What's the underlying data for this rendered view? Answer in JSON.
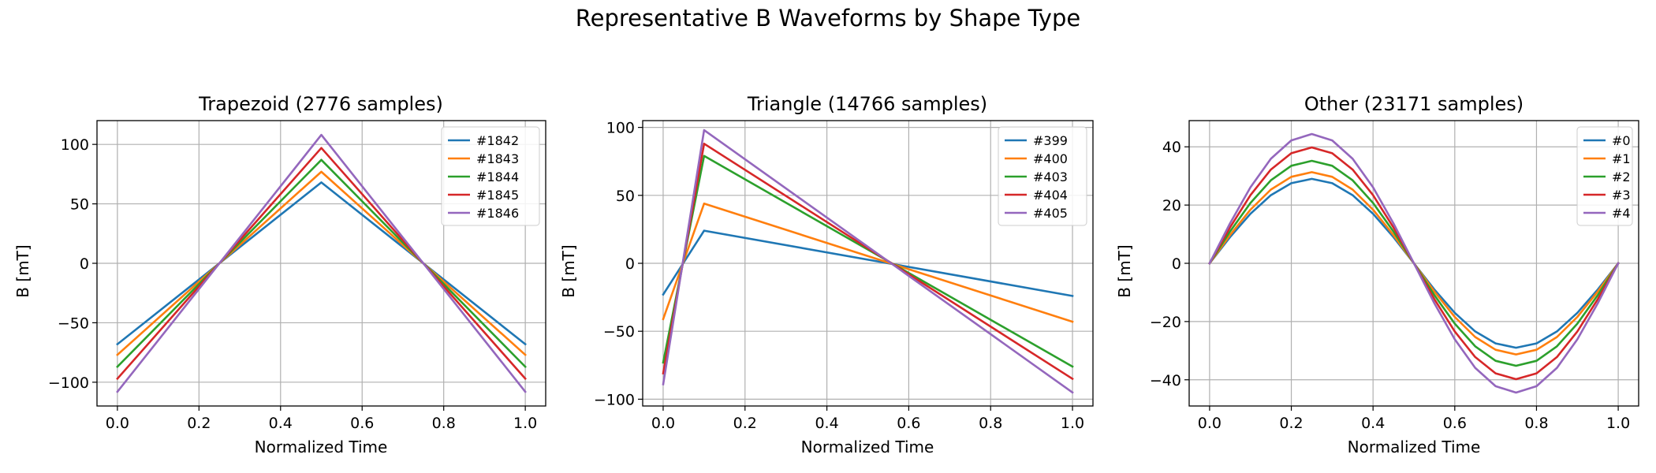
{
  "figure": {
    "suptitle": "Representative B Waveforms by Shape Type"
  },
  "chart_data": [
    {
      "type": "line",
      "title": "Trapezoid (2776 samples)",
      "xlabel": "Normalized Time",
      "ylabel": "B [mT]",
      "xlim": [
        -0.05,
        1.05
      ],
      "ylim": [
        -120,
        120
      ],
      "xticks": [
        0.0,
        0.2,
        0.4,
        0.6,
        0.8,
        1.0
      ],
      "xtick_labels": [
        "0.0",
        "0.2",
        "0.4",
        "0.6",
        "0.8",
        "1.0"
      ],
      "yticks": [
        -100,
        -50,
        0,
        50,
        100
      ],
      "ytick_labels": [
        "−100",
        "−50",
        "0",
        "50",
        "100"
      ],
      "grid": true,
      "legend_loc": "upper right",
      "series": [
        {
          "name": "#1842",
          "color": "#1f77b4",
          "x": [
            0.0,
            0.5,
            1.0
          ],
          "y": [
            -68,
            68,
            -68
          ]
        },
        {
          "name": "#1843",
          "color": "#ff7f0e",
          "x": [
            0.0,
            0.5,
            1.0
          ],
          "y": [
            -77,
            77,
            -77
          ]
        },
        {
          "name": "#1844",
          "color": "#2ca02c",
          "x": [
            0.0,
            0.5,
            1.0
          ],
          "y": [
            -87,
            87,
            -87
          ]
        },
        {
          "name": "#1845",
          "color": "#d62728",
          "x": [
            0.0,
            0.5,
            1.0
          ],
          "y": [
            -97,
            97,
            -97
          ]
        },
        {
          "name": "#1846",
          "color": "#9467bd",
          "x": [
            0.0,
            0.5,
            1.0
          ],
          "y": [
            -108,
            108,
            -108
          ]
        }
      ]
    },
    {
      "type": "line",
      "title": "Triangle (14766 samples)",
      "xlabel": "Normalized Time",
      "ylabel": "B [mT]",
      "xlim": [
        -0.05,
        1.05
      ],
      "ylim": [
        -105,
        105
      ],
      "xticks": [
        0.0,
        0.2,
        0.4,
        0.6,
        0.8,
        1.0
      ],
      "xtick_labels": [
        "0.0",
        "0.2",
        "0.4",
        "0.6",
        "0.8",
        "1.0"
      ],
      "yticks": [
        -100,
        -50,
        0,
        50,
        100
      ],
      "ytick_labels": [
        "−100",
        "−50",
        "0",
        "50",
        "100"
      ],
      "grid": true,
      "legend_loc": "upper right",
      "series": [
        {
          "name": "#399",
          "color": "#1f77b4",
          "x": [
            0.0,
            0.1,
            1.0
          ],
          "y": [
            -23,
            24,
            -24
          ]
        },
        {
          "name": "#400",
          "color": "#ff7f0e",
          "x": [
            0.0,
            0.1,
            1.0
          ],
          "y": [
            -41,
            44,
            -43
          ]
        },
        {
          "name": "#403",
          "color": "#2ca02c",
          "x": [
            0.0,
            0.1,
            1.0
          ],
          "y": [
            -73,
            79,
            -76
          ]
        },
        {
          "name": "#404",
          "color": "#d62728",
          "x": [
            0.0,
            0.1,
            1.0
          ],
          "y": [
            -81,
            88,
            -85
          ]
        },
        {
          "name": "#405",
          "color": "#9467bd",
          "x": [
            0.0,
            0.1,
            1.0
          ],
          "y": [
            -89,
            98,
            -95
          ]
        }
      ]
    },
    {
      "type": "line",
      "title": "Other (23171 samples)",
      "xlabel": "Normalized Time",
      "ylabel": "B [mT]",
      "xlim": [
        -0.05,
        1.05
      ],
      "ylim": [
        -49,
        49
      ],
      "xticks": [
        0.0,
        0.2,
        0.4,
        0.6,
        0.8,
        1.0
      ],
      "xtick_labels": [
        "0.0",
        "0.2",
        "0.4",
        "0.6",
        "0.8",
        "1.0"
      ],
      "yticks": [
        -40,
        -20,
        0,
        20,
        40
      ],
      "ytick_labels": [
        "−40",
        "−20",
        "0",
        "20",
        "40"
      ],
      "grid": true,
      "legend_loc": "upper right",
      "series": [
        {
          "name": "#0",
          "color": "#1f77b4",
          "x": [
            0.0,
            0.05,
            0.1,
            0.15,
            0.2,
            0.25,
            0.3,
            0.35,
            0.4,
            0.45,
            0.5,
            0.55,
            0.6,
            0.65,
            0.7,
            0.75,
            0.8,
            0.85,
            0.9,
            0.95,
            1.0
          ],
          "y": [
            0.0,
            9.0,
            17.0,
            23.4,
            27.5,
            29.0,
            27.5,
            23.4,
            17.0,
            9.0,
            0.0,
            -9.0,
            -17.0,
            -23.4,
            -27.5,
            -29.0,
            -27.5,
            -23.4,
            -17.0,
            -9.0,
            0.0
          ]
        },
        {
          "name": "#1",
          "color": "#ff7f0e",
          "x": [
            0.0,
            0.05,
            0.1,
            0.15,
            0.2,
            0.25,
            0.3,
            0.35,
            0.4,
            0.45,
            0.5,
            0.55,
            0.6,
            0.65,
            0.7,
            0.75,
            0.8,
            0.85,
            0.9,
            0.95,
            1.0
          ],
          "y": [
            0.0,
            9.7,
            18.4,
            25.3,
            29.7,
            31.3,
            29.7,
            25.3,
            18.4,
            9.7,
            0.0,
            -9.7,
            -18.4,
            -25.3,
            -29.7,
            -31.3,
            -29.7,
            -25.3,
            -18.4,
            -9.7,
            0.0
          ]
        },
        {
          "name": "#2",
          "color": "#2ca02c",
          "x": [
            0.0,
            0.05,
            0.1,
            0.15,
            0.2,
            0.25,
            0.3,
            0.35,
            0.4,
            0.45,
            0.5,
            0.55,
            0.6,
            0.65,
            0.7,
            0.75,
            0.8,
            0.85,
            0.9,
            0.95,
            1.0
          ],
          "y": [
            0.0,
            10.9,
            20.7,
            28.5,
            33.5,
            35.2,
            33.5,
            28.5,
            20.7,
            10.9,
            0.0,
            -10.9,
            -20.7,
            -28.5,
            -33.5,
            -35.2,
            -33.5,
            -28.5,
            -20.7,
            -10.9,
            0.0
          ]
        },
        {
          "name": "#3",
          "color": "#d62728",
          "x": [
            0.0,
            0.05,
            0.1,
            0.15,
            0.2,
            0.25,
            0.3,
            0.35,
            0.4,
            0.45,
            0.5,
            0.55,
            0.6,
            0.65,
            0.7,
            0.75,
            0.8,
            0.85,
            0.9,
            0.95,
            1.0
          ],
          "y": [
            0.0,
            12.3,
            23.4,
            32.2,
            37.8,
            39.8,
            37.8,
            32.2,
            23.4,
            12.3,
            0.0,
            -12.3,
            -23.4,
            -32.2,
            -37.8,
            -39.8,
            -37.8,
            -32.2,
            -23.4,
            -12.3,
            0.0
          ]
        },
        {
          "name": "#4",
          "color": "#9467bd",
          "x": [
            0.0,
            0.05,
            0.1,
            0.15,
            0.2,
            0.25,
            0.3,
            0.35,
            0.4,
            0.45,
            0.5,
            0.55,
            0.6,
            0.65,
            0.7,
            0.75,
            0.8,
            0.85,
            0.9,
            0.95,
            1.0
          ],
          "y": [
            0.0,
            13.7,
            26.1,
            35.9,
            42.2,
            44.4,
            42.2,
            35.9,
            26.1,
            13.7,
            0.0,
            -13.7,
            -26.1,
            -35.9,
            -42.2,
            -44.4,
            -42.2,
            -35.9,
            -26.1,
            -13.7,
            0.0
          ]
        }
      ]
    }
  ]
}
